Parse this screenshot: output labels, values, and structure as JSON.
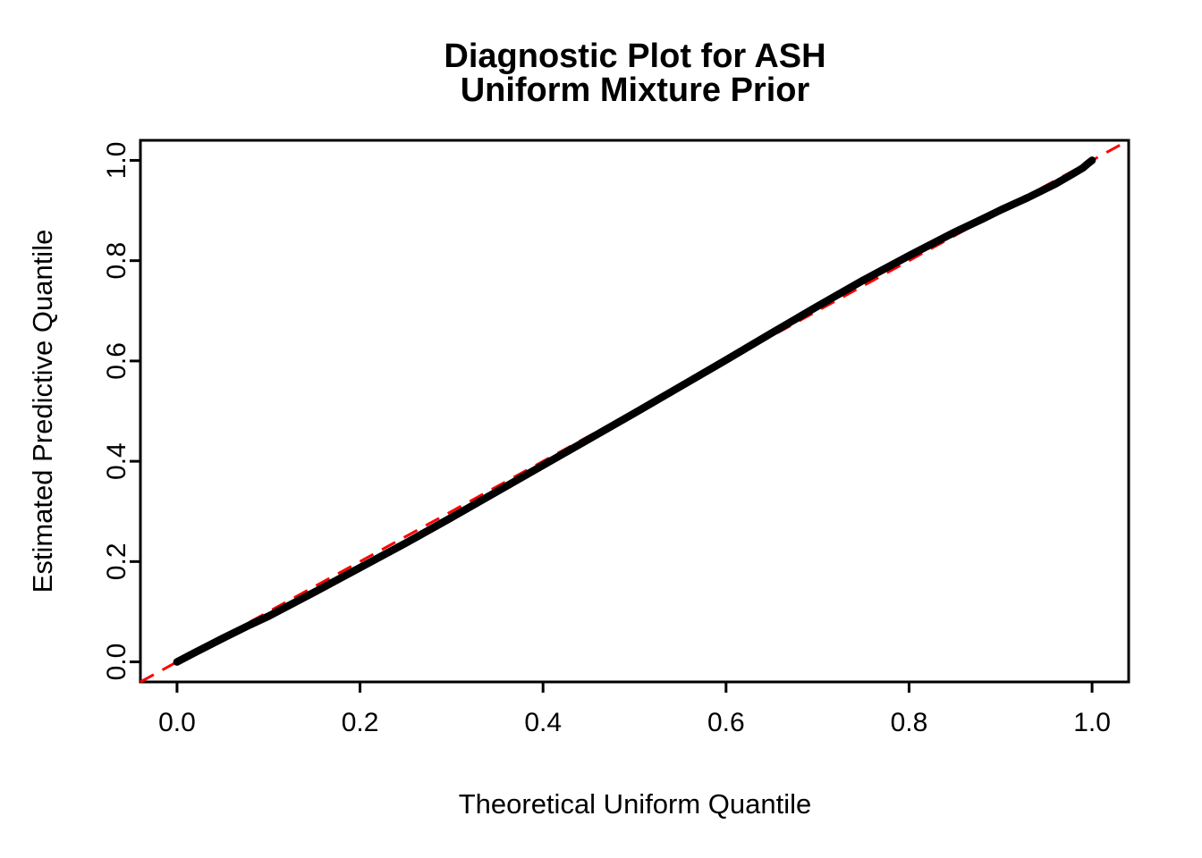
{
  "title": {
    "line1": "Diagnostic Plot for ASH",
    "line2": "Uniform Mixture Prior"
  },
  "chart_data": {
    "type": "scatter",
    "subtype": "qq-plot",
    "title": "Diagnostic Plot for ASH\nUniform Mixture Prior",
    "xlabel": "Theoretical Uniform Quantile",
    "ylabel": "Estimated Predictive Quantile",
    "xlim": [
      -0.04,
      1.04
    ],
    "ylim": [
      -0.04,
      1.04
    ],
    "x_ticks": [
      "0.0",
      "0.2",
      "0.4",
      "0.6",
      "0.8",
      "1.0"
    ],
    "x_tick_values": [
      0.0,
      0.2,
      0.4,
      0.6,
      0.8,
      1.0
    ],
    "y_ticks": [
      "0.0",
      "0.2",
      "0.4",
      "0.6",
      "0.8",
      "1.0"
    ],
    "y_tick_values": [
      0.0,
      0.2,
      0.4,
      0.6,
      0.8,
      1.0
    ],
    "grid": false,
    "legend": "none",
    "series": [
      {
        "name": "estimated-predictive-quantiles",
        "color": "#000000",
        "style": "thick-point-curve",
        "points": [
          [
            0.0,
            0.0
          ],
          [
            0.02,
            0.019
          ],
          [
            0.05,
            0.047
          ],
          [
            0.08,
            0.074
          ],
          [
            0.1,
            0.091
          ],
          [
            0.15,
            0.139
          ],
          [
            0.2,
            0.188
          ],
          [
            0.25,
            0.237
          ],
          [
            0.3,
            0.288
          ],
          [
            0.35,
            0.34
          ],
          [
            0.4,
            0.392
          ],
          [
            0.45,
            0.444
          ],
          [
            0.5,
            0.496
          ],
          [
            0.55,
            0.549
          ],
          [
            0.6,
            0.602
          ],
          [
            0.65,
            0.656
          ],
          [
            0.7,
            0.709
          ],
          [
            0.75,
            0.761
          ],
          [
            0.8,
            0.81
          ],
          [
            0.85,
            0.857
          ],
          [
            0.88,
            0.883
          ],
          [
            0.9,
            0.901
          ],
          [
            0.93,
            0.926
          ],
          [
            0.96,
            0.953
          ],
          [
            0.98,
            0.974
          ],
          [
            0.99,
            0.985
          ],
          [
            0.995,
            0.993
          ],
          [
            1.0,
            1.0
          ]
        ]
      }
    ],
    "reference_line": {
      "name": "identity-line",
      "from": [
        -0.04,
        -0.04
      ],
      "to": [
        1.04,
        1.04
      ],
      "color": "#FF0000",
      "style": "dashed"
    }
  },
  "colors": {
    "curve": "#000000",
    "reference": "#FF0000",
    "frame": "#000000",
    "background": "#ffffff"
  }
}
